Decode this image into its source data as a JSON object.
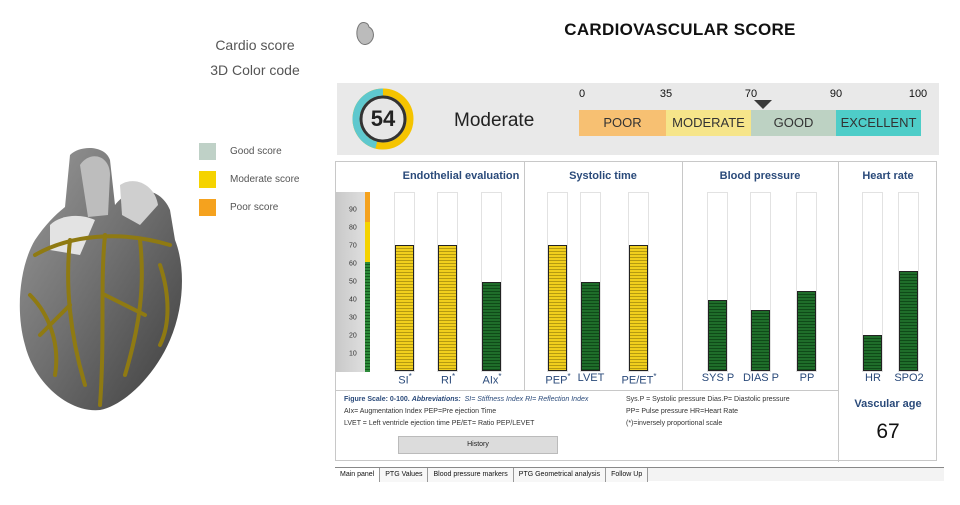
{
  "left": {
    "title_line1": "Cardio score",
    "title_line2": "3D Color code",
    "legend": [
      {
        "label": "Good score",
        "color": "#bfd1c7"
      },
      {
        "label": "Moderate score",
        "color": "#f5d300"
      },
      {
        "label": "Poor score",
        "color": "#f5a21e"
      }
    ]
  },
  "header": {
    "title": "CARDIOVASCULAR SCORE"
  },
  "score": {
    "value": "54",
    "fraction": 0.54,
    "category": "Moderate",
    "ticks": [
      "0",
      "35",
      "70",
      "90",
      "100"
    ],
    "segments": [
      {
        "label": "POOR",
        "color": "#f7c072"
      },
      {
        "label": "MODERATE",
        "color": "#f6e58a"
      },
      {
        "label": "GOOD",
        "color": "#bdd2c3"
      },
      {
        "label": "EXCELLENT",
        "color": "#4ecdc8"
      }
    ]
  },
  "chart_data": {
    "type": "bar",
    "title": "",
    "ylim": [
      0,
      100
    ],
    "y_ticks": [
      "90",
      "80",
      "70",
      "60",
      "50",
      "40",
      "30",
      "20",
      "10"
    ],
    "groups": [
      {
        "name": "Endothelial evaluation",
        "bars": [
          {
            "label": "SI",
            "star": "*",
            "value": 71,
            "color": "yellow"
          },
          {
            "label": "RI",
            "star": "*",
            "value": 71,
            "color": "yellow"
          },
          {
            "label": "AIx",
            "star": "*",
            "value": 50,
            "color": "green"
          }
        ]
      },
      {
        "name": "Systolic time",
        "bars": [
          {
            "label": "PEP",
            "star": "*",
            "value": 71,
            "color": "yellow"
          },
          {
            "label": "LVET",
            "star": "",
            "value": 50,
            "color": "green"
          },
          {
            "label": "PE/ET",
            "star": "*",
            "value": 71,
            "color": "yellow"
          }
        ]
      },
      {
        "name": "Blood pressure",
        "bars": [
          {
            "label": "SYS P",
            "star": "",
            "value": 40,
            "color": "green"
          },
          {
            "label": "DIAS P",
            "star": "",
            "value": 34,
            "color": "green"
          },
          {
            "label": "PP",
            "star": "",
            "value": 45,
            "color": "green"
          }
        ]
      },
      {
        "name": "Heart rate",
        "bars": [
          {
            "label": "HR",
            "star": "",
            "value": 20,
            "color": "green"
          },
          {
            "label": "SPO2",
            "star": "",
            "value": 56,
            "color": "green"
          }
        ]
      }
    ]
  },
  "notes": {
    "line1_scale": "Figure Scale: 0-100.",
    "line1_abbr": "Abbreviations:",
    "line1_rest": "SI= Stiffness Index  RI= Reflection Index",
    "line2": "AIx= Augmentation Index PEP=Pre ejection Time",
    "line3": "LVET = Left ventricle ejection time PE/ET= Ratio PEP/LEVET",
    "right1": "Sys.P = Systolic pressure Dias.P= Diastolic pressure",
    "right2": "PP= Pulse pressure      HR=Heart Rate",
    "right3": "(*)=inversely proportional scale"
  },
  "history_button": "History",
  "vascular_age": {
    "title": "Vascular age",
    "value": "67"
  },
  "tabs": [
    "Main panel",
    "PTG Values",
    "Blood pressure markers",
    "PTG Geometrical analysis",
    "Follow Up"
  ]
}
